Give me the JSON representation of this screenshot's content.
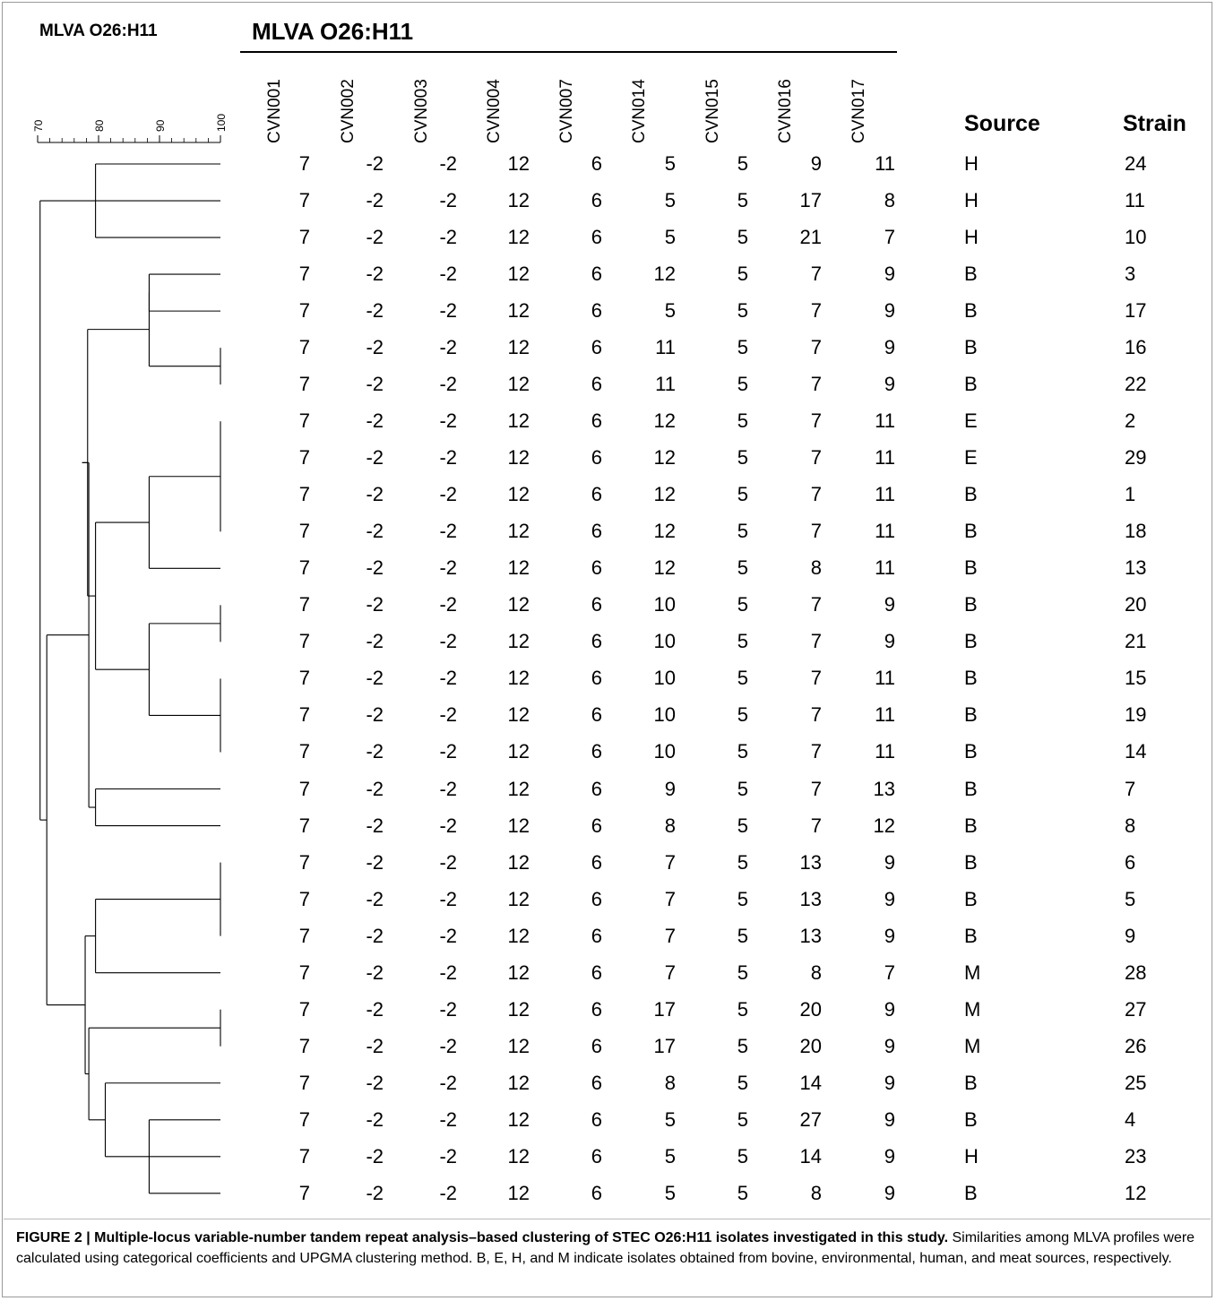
{
  "figure": {
    "small_title": "MLVA O26:H11",
    "table_title": "MLVA O26:H11",
    "loci": [
      "CVN001",
      "CVN002",
      "CVN003",
      "CVN004",
      "CVN007",
      "CVN014",
      "CVN015",
      "CVN016",
      "CVN017"
    ],
    "source_header": "Source",
    "strain_header": "Strain",
    "scale_ticks": [
      "70",
      "80",
      "90",
      "100"
    ],
    "caption_bold": "FIGURE 2 | Multiple-locus variable-number tandem repeat analysis–based clustering of STEC O26:H11 isolates investigated in this study.",
    "caption_text": " Similarities among MLVA profiles were calculated using categorical coefficients and UPGMA clustering method. B, E, H, and M indicate isolates obtained from bovine, environmental, human, and meat sources, respectively."
  },
  "chart_data": {
    "type": "table",
    "scale": {
      "min": 70,
      "max": 100,
      "ticks": [
        70,
        80,
        90,
        100
      ]
    },
    "rows": [
      {
        "values": [
          "7",
          "-2",
          "-2",
          "12",
          "6",
          "5",
          "5",
          "9",
          "11"
        ],
        "source": "H",
        "strain": "24"
      },
      {
        "values": [
          "7",
          "-2",
          "-2",
          "12",
          "6",
          "5",
          "5",
          "17",
          "8"
        ],
        "source": "H",
        "strain": "11"
      },
      {
        "values": [
          "7",
          "-2",
          "-2",
          "12",
          "6",
          "5",
          "5",
          "21",
          "7"
        ],
        "source": "H",
        "strain": "10"
      },
      {
        "values": [
          "7",
          "-2",
          "-2",
          "12",
          "6",
          "12",
          "5",
          "7",
          "9"
        ],
        "source": "B",
        "strain": "3"
      },
      {
        "values": [
          "7",
          "-2",
          "-2",
          "12",
          "6",
          "5",
          "5",
          "7",
          "9"
        ],
        "source": "B",
        "strain": "17"
      },
      {
        "values": [
          "7",
          "-2",
          "-2",
          "12",
          "6",
          "11",
          "5",
          "7",
          "9"
        ],
        "source": "B",
        "strain": "16"
      },
      {
        "values": [
          "7",
          "-2",
          "-2",
          "12",
          "6",
          "11",
          "5",
          "7",
          "9"
        ],
        "source": "B",
        "strain": "22"
      },
      {
        "values": [
          "7",
          "-2",
          "-2",
          "12",
          "6",
          "12",
          "5",
          "7",
          "11"
        ],
        "source": "E",
        "strain": "2"
      },
      {
        "values": [
          "7",
          "-2",
          "-2",
          "12",
          "6",
          "12",
          "5",
          "7",
          "11"
        ],
        "source": "E",
        "strain": "29"
      },
      {
        "values": [
          "7",
          "-2",
          "-2",
          "12",
          "6",
          "12",
          "5",
          "7",
          "11"
        ],
        "source": "B",
        "strain": "1"
      },
      {
        "values": [
          "7",
          "-2",
          "-2",
          "12",
          "6",
          "12",
          "5",
          "7",
          "11"
        ],
        "source": "B",
        "strain": "18"
      },
      {
        "values": [
          "7",
          "-2",
          "-2",
          "12",
          "6",
          "12",
          "5",
          "8",
          "11"
        ],
        "source": "B",
        "strain": "13"
      },
      {
        "values": [
          "7",
          "-2",
          "-2",
          "12",
          "6",
          "10",
          "5",
          "7",
          "9"
        ],
        "source": "B",
        "strain": "20"
      },
      {
        "values": [
          "7",
          "-2",
          "-2",
          "12",
          "6",
          "10",
          "5",
          "7",
          "9"
        ],
        "source": "B",
        "strain": "21"
      },
      {
        "values": [
          "7",
          "-2",
          "-2",
          "12",
          "6",
          "10",
          "5",
          "7",
          "11"
        ],
        "source": "B",
        "strain": "15"
      },
      {
        "values": [
          "7",
          "-2",
          "-2",
          "12",
          "6",
          "10",
          "5",
          "7",
          "11"
        ],
        "source": "B",
        "strain": "19"
      },
      {
        "values": [
          "7",
          "-2",
          "-2",
          "12",
          "6",
          "10",
          "5",
          "7",
          "11"
        ],
        "source": "B",
        "strain": "14"
      },
      {
        "values": [
          "7",
          "-2",
          "-2",
          "12",
          "6",
          "9",
          "5",
          "7",
          "13"
        ],
        "source": "B",
        "strain": "7"
      },
      {
        "values": [
          "7",
          "-2",
          "-2",
          "12",
          "6",
          "8",
          "5",
          "7",
          "12"
        ],
        "source": "B",
        "strain": "8"
      },
      {
        "values": [
          "7",
          "-2",
          "-2",
          "12",
          "6",
          "7",
          "5",
          "13",
          "9"
        ],
        "source": "B",
        "strain": "6"
      },
      {
        "values": [
          "7",
          "-2",
          "-2",
          "12",
          "6",
          "7",
          "5",
          "13",
          "9"
        ],
        "source": "B",
        "strain": "5"
      },
      {
        "values": [
          "7",
          "-2",
          "-2",
          "12",
          "6",
          "7",
          "5",
          "13",
          "9"
        ],
        "source": "B",
        "strain": "9"
      },
      {
        "values": [
          "7",
          "-2",
          "-2",
          "12",
          "6",
          "7",
          "5",
          "8",
          "7"
        ],
        "source": "M",
        "strain": "28"
      },
      {
        "values": [
          "7",
          "-2",
          "-2",
          "12",
          "6",
          "17",
          "5",
          "20",
          "9"
        ],
        "source": "M",
        "strain": "27"
      },
      {
        "values": [
          "7",
          "-2",
          "-2",
          "12",
          "6",
          "17",
          "5",
          "20",
          "9"
        ],
        "source": "M",
        "strain": "26"
      },
      {
        "values": [
          "7",
          "-2",
          "-2",
          "12",
          "6",
          "8",
          "5",
          "14",
          "9"
        ],
        "source": "B",
        "strain": "25"
      },
      {
        "values": [
          "7",
          "-2",
          "-2",
          "12",
          "6",
          "5",
          "5",
          "27",
          "9"
        ],
        "source": "B",
        "strain": "4"
      },
      {
        "values": [
          "7",
          "-2",
          "-2",
          "12",
          "6",
          "5",
          "5",
          "14",
          "9"
        ],
        "source": "H",
        "strain": "23"
      },
      {
        "values": [
          "7",
          "-2",
          "-2",
          "12",
          "6",
          "5",
          "5",
          "8",
          "9"
        ],
        "source": "B",
        "strain": "12"
      }
    ],
    "dendrogram": {
      "nodes": [
        {
          "sim": 79.5,
          "children": [
            "L0",
            "L1",
            "L2"
          ]
        },
        {
          "sim": 88.3,
          "children": [
            "L3",
            "L4"
          ]
        },
        {
          "sim": 100,
          "children": [
            "L5",
            "L6"
          ]
        },
        {
          "sim": 88.3,
          "children": [
            "N1",
            "N2"
          ]
        },
        {
          "sim": 100,
          "children": [
            "L7",
            "L8",
            "L9",
            "L10"
          ]
        },
        {
          "sim": 88.3,
          "children": [
            "N4",
            "L11"
          ]
        },
        {
          "sim": 100,
          "children": [
            "L12",
            "L13"
          ]
        },
        {
          "sim": 100,
          "children": [
            "L14",
            "L15",
            "L16"
          ]
        },
        {
          "sim": 88.3,
          "children": [
            "N6",
            "N7"
          ]
        },
        {
          "sim": 79.5,
          "children": [
            "N5",
            "N8"
          ]
        },
        {
          "sim": 78.2,
          "children": [
            "N3",
            "N9"
          ]
        },
        {
          "sim": 77.3,
          "children": [
            "N10"
          ]
        },
        {
          "sim": 79.5,
          "children": [
            "L17",
            "L18"
          ]
        },
        {
          "sim": 78.4,
          "children": [
            "N11",
            "N12"
          ]
        },
        {
          "sim": 100,
          "children": [
            "L19",
            "L20",
            "L21"
          ]
        },
        {
          "sim": 79.5,
          "children": [
            "N14",
            "L22"
          ]
        },
        {
          "sim": 100,
          "children": [
            "L23",
            "L24"
          ]
        },
        {
          "sim": 88.3,
          "children": [
            "L26",
            "L27",
            "L28"
          ]
        },
        {
          "sim": 81.1,
          "children": [
            "L25",
            "N17"
          ]
        },
        {
          "sim": 78.4,
          "children": [
            "N16",
            "N18"
          ]
        },
        {
          "sim": 77.8,
          "children": [
            "N15",
            "N19"
          ]
        },
        {
          "sim": 71.5,
          "children": [
            "N13",
            "N20"
          ]
        },
        {
          "sim": 70.4,
          "children": [
            "N0",
            "N21"
          ]
        }
      ]
    }
  }
}
